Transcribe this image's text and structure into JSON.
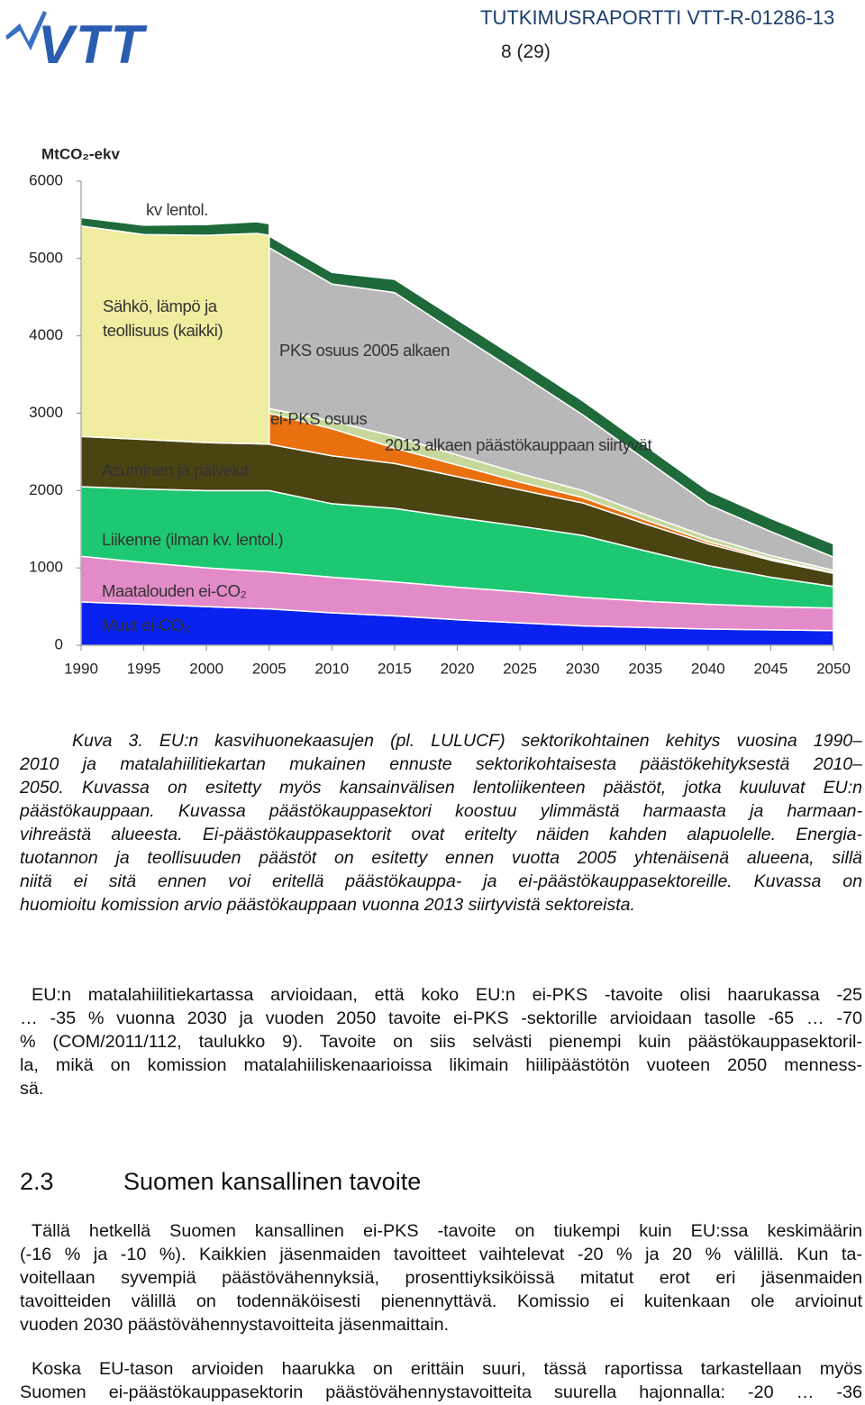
{
  "header": {
    "logo": "VTT",
    "report": "TUTKIMUSRAPORTTI VTT-R-01286-13",
    "page": "8 (29)"
  },
  "chart_data": {
    "type": "stacked-area",
    "y_label": "MtCO₂-ekv",
    "x": [
      1990,
      1995,
      2000,
      2004,
      2005,
      2005,
      2010,
      2015,
      2020,
      2025,
      2030,
      2035,
      2040,
      2045,
      2050
    ],
    "series": [
      {
        "name": "Muut ei-CO₂",
        "color": "#0a22f0",
        "values": [
          560,
          530,
          500,
          475,
          470,
          470,
          420,
          380,
          330,
          290,
          250,
          230,
          210,
          200,
          190
        ]
      },
      {
        "name": "Maatalouden ei-CO₂",
        "color": "#e38ac8",
        "values": [
          590,
          540,
          500,
          485,
          480,
          480,
          460,
          440,
          420,
          400,
          370,
          340,
          320,
          300,
          290
        ]
      },
      {
        "name": "Liikenne (ilman kv. lentol.)",
        "color": "#1ec872",
        "values": [
          900,
          950,
          1000,
          1040,
          1050,
          1050,
          950,
          950,
          900,
          850,
          800,
          650,
          500,
          380,
          280
        ]
      },
      {
        "name": "Asuminen ja palvelut",
        "color": "#4a4312",
        "values": [
          650,
          640,
          620,
          605,
          600,
          600,
          620,
          580,
          530,
          470,
          420,
          350,
          280,
          220,
          170
        ]
      },
      {
        "name": "Sähkö, lämpö ja teollisuus (kaikki)",
        "color": "#f0eca0",
        "values": [
          2720,
          2650,
          2680,
          2720,
          2700,
          null,
          null,
          null,
          null,
          null,
          null,
          null,
          null,
          null,
          null
        ]
      },
      {
        "name": "ei-PKS osuus",
        "color": "#e8700f",
        "values": [
          null,
          null,
          null,
          null,
          null,
          400,
          350,
          200,
          150,
          100,
          70,
          50,
          30,
          20,
          10
        ]
      },
      {
        "name": "2013 alkaen päästökauppaan siirtyvät",
        "color": "#c6d89a",
        "values": [
          null,
          null,
          null,
          null,
          null,
          60,
          100,
          150,
          130,
          110,
          90,
          70,
          60,
          40,
          30
        ]
      },
      {
        "name": "PKS osuus 2005 alkaen",
        "color": "#b8b8b8",
        "values": [
          null,
          null,
          null,
          null,
          null,
          2080,
          1770,
          1860,
          1570,
          1290,
          980,
          710,
          420,
          310,
          170
        ]
      },
      {
        "name": "kv lentol.",
        "color": "#1e6a3a",
        "values": [
          110,
          120,
          140,
          150,
          150,
          150,
          150,
          170,
          180,
          180,
          180,
          180,
          180,
          170,
          170
        ]
      }
    ],
    "xlim": [
      1990,
      2050
    ],
    "xticks": [
      1990,
      1995,
      2000,
      2005,
      2010,
      2015,
      2020,
      2025,
      2030,
      2035,
      2040,
      2045,
      2050
    ],
    "ylim": [
      0,
      6000
    ],
    "yticks": [
      0,
      1000,
      2000,
      3000,
      4000,
      5000,
      6000
    ]
  },
  "caption": [
    "Kuva 3. EU:n kasvihuonekaasujen (pl. LULUCF) sektorikohtainen kehitys vuosina 1990–",
    "2010 ja matalahiilitiekartan mukainen ennuste sektorikohtaisesta päästökehityksestä 2010–",
    "2050. Kuvassa on esitetty myös kansainvälisen lentoliikenteen päästöt, jotka kuuluvat EU:n",
    "päästökauppaan. Kuvassa päästökauppasektori koostuu ylimmästä harmaasta ja harmaan-",
    "vihreästä alueesta. Ei-päästökauppasektorit ovat eritelty näiden kahden alapuolelle. Energia-",
    "tuotannon ja teollisuuden päästöt on esitetty ennen vuotta 2005 yhtenäisenä alueena, sillä",
    "niitä ei sitä ennen voi eritellä päästökauppa- ja ei-päästökauppasektoreille. Kuvassa on",
    "huomioitu komission arvio päästökauppaan vuonna 2013 siirtyvistä sektoreista."
  ],
  "paragraphs": [
    [
      "EU:n matalahiilitiekartassa arvioidaan, että koko EU:n ei-PKS -tavoite olisi haarukassa -25",
      "… -35 % vuonna 2030 ja vuoden 2050 tavoite ei-PKS -sektorille arvioidaan tasolle -65 … -70",
      "% (COM/2011/112, taulukko 9). Tavoite on siis selvästi pienempi kuin päästökauppasektoril-",
      "la, mikä on komission matalahiiliskenaarioissa likimain hiilipäästötön vuoteen 2050 menness-",
      "sä."
    ],
    [
      "Tällä hetkellä Suomen kansallinen ei-PKS -tavoite on tiukempi kuin EU:ssa keskimäärin",
      "(-16 % ja -10 %). Kaikkien jäsenmaiden tavoitteet vaihtelevat -20 % ja 20 % välillä. Kun ta-",
      "voitellaan syvempiä päästövähennyksiä, prosenttiyksiköissä mitatut erot eri jäsenmaiden",
      "tavoitteiden välillä on todennäköisesti pienennyttävä. Komissio ei kuitenkaan ole arvioinut",
      "vuoden 2030 päästövähennystavoitteita jäsenmaittain."
    ],
    [
      "Koska EU-tason arvioiden haarukka on erittäin suuri, tässä raportissa tarkastellaan myös",
      "Suomen ei-päästökauppasektorin päästövähennystavoitteita suurella hajonnalla: -20 … -36"
    ]
  ],
  "section": {
    "number": "2.3",
    "title": "Suomen kansallinen tavoite"
  }
}
